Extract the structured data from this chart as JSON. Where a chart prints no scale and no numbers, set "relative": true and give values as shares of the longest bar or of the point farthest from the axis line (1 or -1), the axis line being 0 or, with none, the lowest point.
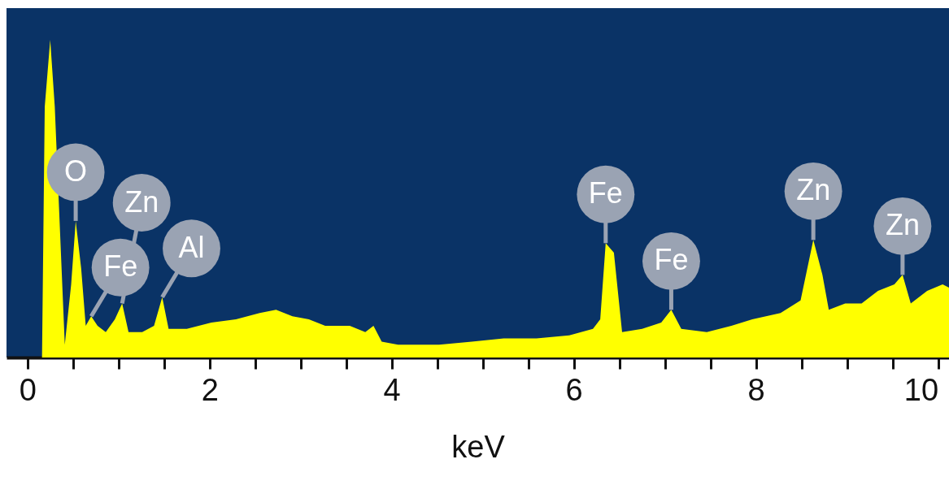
{
  "chart_data": {
    "type": "area",
    "relative": true,
    "xlabel": "keV",
    "grid": false,
    "xlim": [
      -0.23,
      10.12
    ],
    "xticks": [
      0,
      {
        "value": 0.5,
        "label": null
      },
      {
        "value": 1,
        "label": null
      },
      {
        "value": 1.5,
        "label": null
      },
      2,
      {
        "value": 2.5,
        "label": null
      },
      {
        "value": 3,
        "label": null
      },
      {
        "value": 3.5,
        "label": null
      },
      4,
      {
        "value": 4.5,
        "label": null
      },
      {
        "value": 5,
        "label": null
      },
      {
        "value": 5.5,
        "label": null
      },
      6,
      {
        "value": 6.5,
        "label": null
      },
      {
        "value": 7,
        "label": null
      },
      {
        "value": 7.5,
        "label": null
      },
      8,
      {
        "value": 8.5,
        "label": null
      },
      {
        "value": 9,
        "label": null
      },
      {
        "value": 9.5,
        "label": null
      },
      10
    ],
    "series": [
      {
        "color": "#ffff00",
        "x": [
          0.14,
          0.16,
          0.19,
          0.25,
          0.3,
          0.41,
          0.48,
          0.53,
          0.59,
          0.64,
          0.7,
          0.77,
          0.86,
          0.96,
          1.04,
          1.11,
          1.26,
          1.39,
          1.48,
          1.55,
          1.75,
          2.02,
          2.29,
          2.55,
          2.73,
          2.91,
          3.09,
          3.27,
          3.54,
          3.71,
          3.8,
          3.89,
          4.07,
          4.52,
          4.88,
          5.23,
          5.59,
          5.95,
          6.21,
          6.29,
          6.35,
          6.44,
          6.53,
          6.75,
          6.96,
          7.07,
          7.18,
          7.46,
          7.73,
          7.96,
          8.27,
          8.49,
          8.63,
          8.73,
          8.8,
          8.98,
          9.16,
          9.34,
          9.52,
          9.61,
          9.7,
          9.88,
          10.05,
          10.12
        ],
        "values": [
          0,
          0,
          0.79,
          1.0,
          0.79,
          0.04,
          0.23,
          0.43,
          0.28,
          0.1,
          0.13,
          0.1,
          0.08,
          0.12,
          0.17,
          0.08,
          0.08,
          0.1,
          0.19,
          0.09,
          0.09,
          0.11,
          0.12,
          0.14,
          0.15,
          0.13,
          0.12,
          0.1,
          0.1,
          0.08,
          0.1,
          0.05,
          0.04,
          0.04,
          0.05,
          0.06,
          0.06,
          0.07,
          0.09,
          0.12,
          0.36,
          0.33,
          0.08,
          0.09,
          0.11,
          0.15,
          0.09,
          0.08,
          0.1,
          0.12,
          0.14,
          0.18,
          0.37,
          0.26,
          0.15,
          0.17,
          0.17,
          0.21,
          0.23,
          0.26,
          0.17,
          0.21,
          0.23,
          0.22
        ]
      }
    ],
    "annotations": [
      {
        "text": "O",
        "x": 0.53,
        "y": 0.43
      },
      {
        "text": "Fe",
        "x": 0.7,
        "y": 0.13
      },
      {
        "text": "Al",
        "x": 1.48,
        "y": 0.19
      },
      {
        "text": "Zn",
        "x": 1.04,
        "y": 0.17
      },
      {
        "text": "Fe",
        "x": 6.35,
        "y": 0.36
      },
      {
        "text": "Fe",
        "x": 7.07,
        "y": 0.15
      },
      {
        "text": "Zn",
        "x": 8.63,
        "y": 0.37
      },
      {
        "text": "Zn",
        "x": 9.61,
        "y": 0.26
      }
    ]
  }
}
